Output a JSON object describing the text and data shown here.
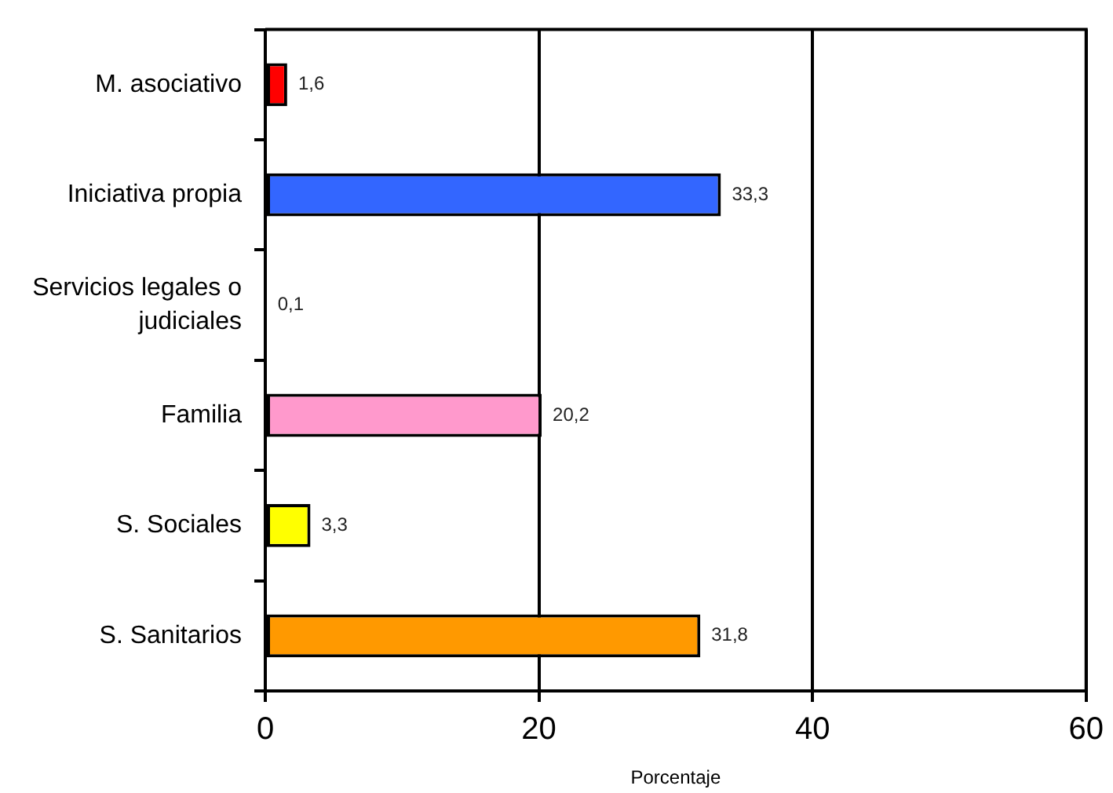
{
  "chart_data": {
    "type": "bar",
    "orientation": "horizontal",
    "xlabel": "Porcentaje",
    "categories": [
      "M. asociativo",
      "Iniciativa propia",
      "Servicios legales o judiciales",
      "Familia",
      "S. Sociales",
      "S. Sanitarios"
    ],
    "values": [
      1.6,
      33.3,
      0.1,
      20.2,
      3.3,
      31.8
    ],
    "colors": [
      "#ff0000",
      "#3366ff",
      "#000000",
      "#ff99cc",
      "#ffff00",
      "#ff9900"
    ],
    "value_labels": [
      "1,6",
      "33,3",
      "0,1",
      "20,2",
      "3,3",
      "31,8"
    ],
    "xlim": [
      0,
      60
    ],
    "xticks": [
      0,
      20,
      40,
      60
    ],
    "grid": "x"
  }
}
